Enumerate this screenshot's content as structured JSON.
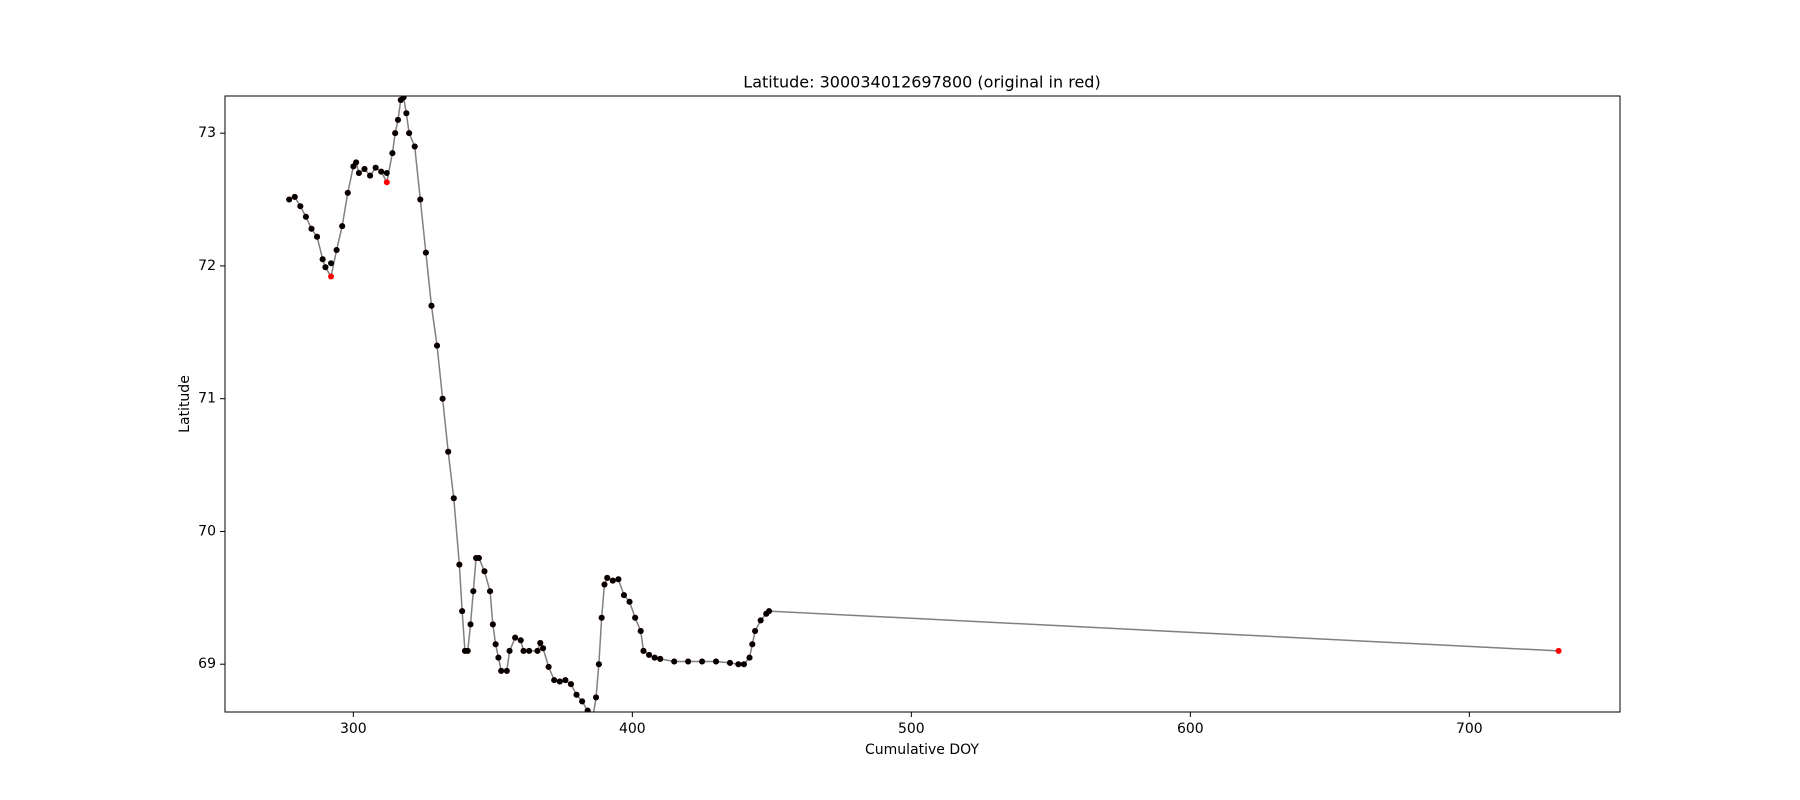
{
  "chart_data": {
    "type": "scatter",
    "title": "Latitude: 300034012697800 (original in red)",
    "x_label": "Cumulative DOY",
    "y_label": "Latitude",
    "xlim": [
      254,
      754
    ],
    "ylim": [
      68.64,
      73.28
    ],
    "xticks": [
      300,
      400,
      500,
      600,
      700
    ],
    "yticks": [
      69,
      70,
      71,
      72,
      73
    ],
    "grid": false,
    "series": [
      {
        "color": "#ff0000",
        "line_color": "#808080",
        "x": [
          277,
          279,
          281,
          283,
          285,
          287,
          289,
          290,
          292,
          294,
          296,
          298,
          300,
          301,
          302,
          304,
          306,
          308,
          310,
          312,
          314,
          315,
          316,
          317,
          318,
          319,
          320,
          322,
          324,
          326,
          328,
          330,
          332,
          334,
          336,
          338,
          339,
          340,
          341,
          342,
          343,
          344,
          345,
          347,
          349,
          350,
          351,
          352,
          353,
          355,
          356,
          358,
          360,
          361,
          363,
          366,
          367,
          368,
          370,
          372,
          374,
          376,
          378,
          380,
          382,
          384,
          386,
          387,
          388,
          389,
          390,
          391,
          393,
          395,
          397,
          399,
          401,
          403,
          404,
          406,
          408,
          410,
          415,
          420,
          425,
          430,
          435,
          438,
          440,
          442,
          443,
          444,
          446,
          448,
          449,
          732
        ],
        "values": [
          72.5,
          72.52,
          72.45,
          72.37,
          72.28,
          72.22,
          72.05,
          71.99,
          71.92,
          72.12,
          72.3,
          72.55,
          72.75,
          72.78,
          72.7,
          72.73,
          72.68,
          72.74,
          72.71,
          72.63,
          72.85,
          73.0,
          73.1,
          73.25,
          73.27,
          73.15,
          73.0,
          72.9,
          72.5,
          72.1,
          71.7,
          71.4,
          71.0,
          70.6,
          70.25,
          69.75,
          69.4,
          69.1,
          69.1,
          69.3,
          69.55,
          69.8,
          69.8,
          69.7,
          69.55,
          69.3,
          69.15,
          69.05,
          68.95,
          68.95,
          69.1,
          69.2,
          69.18,
          69.1,
          69.1,
          69.1,
          69.16,
          69.12,
          68.98,
          68.88,
          68.87,
          68.88,
          68.85,
          68.77,
          68.72,
          68.65,
          68.62,
          68.75,
          69.0,
          69.35,
          69.6,
          69.65,
          69.63,
          69.64,
          69.52,
          69.47,
          69.35,
          69.25,
          69.1,
          69.07,
          69.05,
          69.04,
          69.02,
          69.02,
          69.02,
          69.02,
          69.01,
          69.0,
          69.0,
          69.05,
          69.15,
          69.25,
          69.33,
          69.38,
          69.4,
          69.1
        ]
      },
      {
        "color": "#000000",
        "x": [
          277,
          279,
          281,
          283,
          285,
          287,
          289,
          290,
          292,
          294,
          296,
          298,
          300,
          301,
          302,
          304,
          306,
          308,
          310,
          312,
          314,
          315,
          316,
          317,
          318,
          319,
          320,
          322,
          324,
          326,
          328,
          330,
          332,
          334,
          336,
          338,
          339,
          340,
          341,
          342,
          343,
          344,
          345,
          347,
          349,
          350,
          351,
          352,
          353,
          355,
          356,
          358,
          360,
          361,
          363,
          366,
          367,
          368,
          370,
          372,
          374,
          376,
          378,
          380,
          382,
          384,
          386,
          387,
          388,
          389,
          390,
          391,
          393,
          395,
          397,
          399,
          401,
          403,
          404,
          406,
          408,
          410,
          415,
          420,
          425,
          430,
          435,
          438,
          440,
          442,
          443,
          444,
          446,
          448,
          449
        ],
        "values": [
          72.5,
          72.52,
          72.45,
          72.37,
          72.28,
          72.22,
          72.05,
          71.99,
          72.02,
          72.12,
          72.3,
          72.55,
          72.75,
          72.78,
          72.7,
          72.73,
          72.68,
          72.74,
          72.71,
          72.7,
          72.85,
          73.0,
          73.1,
          73.25,
          73.27,
          73.15,
          73.0,
          72.9,
          72.5,
          72.1,
          71.7,
          71.4,
          71.0,
          70.6,
          70.25,
          69.75,
          69.4,
          69.1,
          69.1,
          69.3,
          69.55,
          69.8,
          69.8,
          69.7,
          69.55,
          69.3,
          69.15,
          69.05,
          68.95,
          68.95,
          69.1,
          69.2,
          69.18,
          69.1,
          69.1,
          69.1,
          69.16,
          69.12,
          68.98,
          68.88,
          68.87,
          68.88,
          68.85,
          68.77,
          68.72,
          68.65,
          68.62,
          68.75,
          69.0,
          69.35,
          69.6,
          69.65,
          69.63,
          69.64,
          69.52,
          69.47,
          69.35,
          69.25,
          69.1,
          69.07,
          69.05,
          69.04,
          69.02,
          69.02,
          69.02,
          69.02,
          69.01,
          69.0,
          69.0,
          69.05,
          69.15,
          69.25,
          69.33,
          69.38,
          69.4
        ]
      }
    ]
  }
}
